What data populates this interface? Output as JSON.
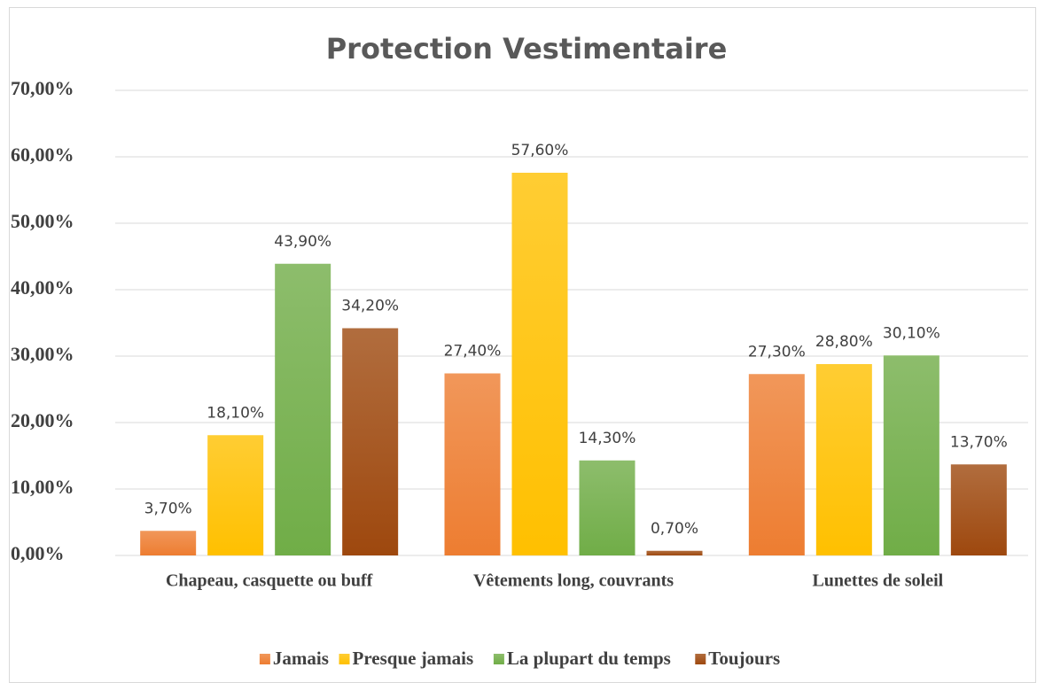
{
  "chart_data": {
    "type": "bar",
    "title": "Protection Vestimentaire",
    "categories": [
      "Chapeau, casquette ou buff",
      "Vêtements long, couvrants",
      "Lunettes de soleil"
    ],
    "series": [
      {
        "name": "Jamais",
        "color": "#ed7d31",
        "values": [
          3.7,
          27.4,
          27.3
        ],
        "value_labels": [
          "3,70%",
          "27,40%",
          "27,30%"
        ]
      },
      {
        "name": "Presque jamais",
        "color": "#ffc000",
        "values": [
          18.1,
          57.6,
          28.8
        ],
        "value_labels": [
          "18,10%",
          "57,60%",
          "28,80%"
        ]
      },
      {
        "name": "La plupart du temps",
        "color": "#70ad47",
        "values": [
          43.9,
          14.3,
          30.1
        ],
        "value_labels": [
          "43,90%",
          "14,30%",
          "30,10%"
        ]
      },
      {
        "name": "Toujours",
        "color": "#9e480e",
        "values": [
          34.2,
          0.7,
          13.7
        ],
        "value_labels": [
          "34,20%",
          "0,70%",
          "13,70%"
        ]
      }
    ],
    "ylim": [
      0,
      70
    ],
    "yticks": [
      {
        "value": 0,
        "label": "0,00%"
      },
      {
        "value": 10,
        "label": "10,00%"
      },
      {
        "value": 20,
        "label": "20,00%"
      },
      {
        "value": 30,
        "label": "30,00%"
      },
      {
        "value": 40,
        "label": "40,00%"
      },
      {
        "value": 50,
        "label": "50,00%"
      },
      {
        "value": 60,
        "label": "60,00%"
      },
      {
        "value": 70,
        "label": "70,00%"
      }
    ],
    "grid": true,
    "legend": "bottom"
  }
}
